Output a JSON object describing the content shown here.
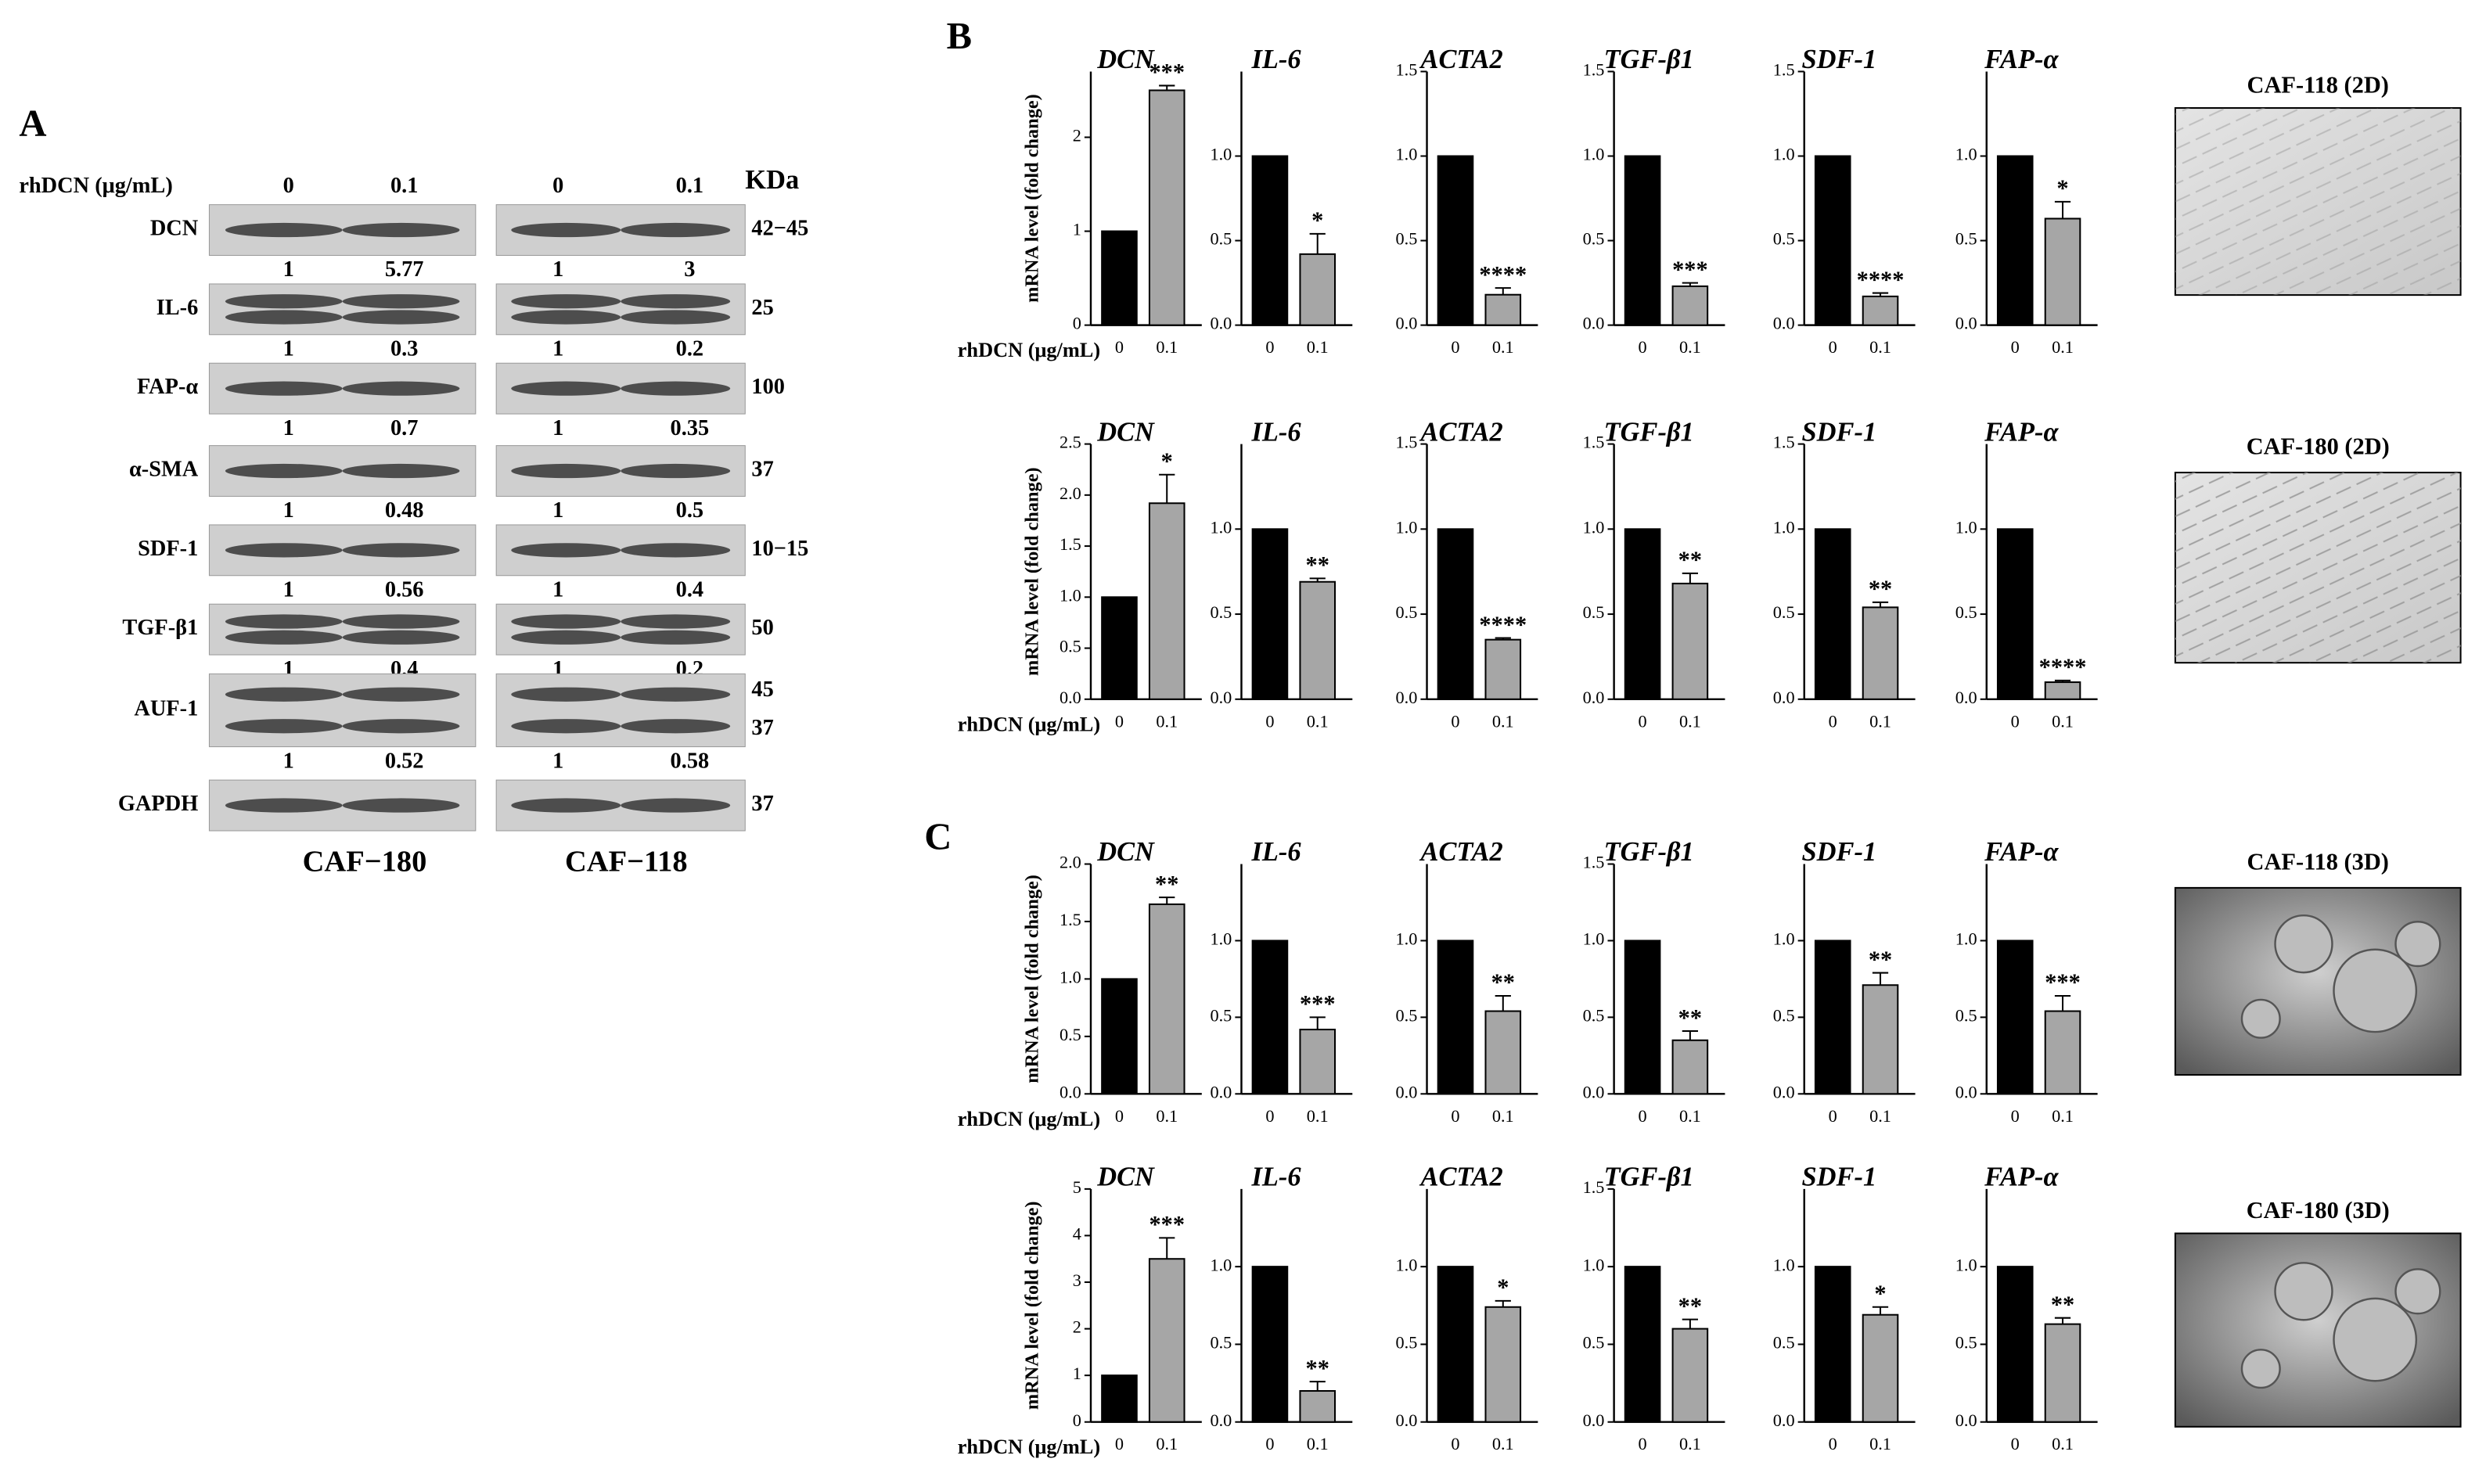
{
  "panel_a": {
    "label": "A",
    "treatment_label": "rhDCN (μg/mL)",
    "doses": [
      "0",
      "0.1",
      "0",
      "0.1"
    ],
    "kda_header": "KDa",
    "rows": [
      {
        "protein": "DCN",
        "kda": [
          "42−45"
        ],
        "ratios": [
          1,
          5.77,
          1,
          3
        ]
      },
      {
        "protein": "IL-6",
        "kda": [
          25
        ],
        "ratios": [
          1,
          0.3,
          1,
          0.2
        ]
      },
      {
        "protein": "FAP-α",
        "kda": [
          100
        ],
        "ratios": [
          1,
          0.7,
          1,
          0.35
        ]
      },
      {
        "protein": "α-SMA",
        "kda": [
          37
        ],
        "ratios": [
          1,
          0.48,
          1,
          0.5
        ]
      },
      {
        "protein": "SDF-1",
        "kda": [
          "10−15"
        ],
        "ratios": [
          1,
          0.56,
          1,
          0.4
        ]
      },
      {
        "protein": "TGF-β1",
        "kda": [
          50
        ],
        "ratios": [
          1,
          0.4,
          1,
          0.2
        ]
      },
      {
        "protein": "AUF-1",
        "kda": [
          45,
          37
        ],
        "ratios": [
          1,
          0.52,
          1,
          0.58
        ]
      },
      {
        "protein": "GAPDH",
        "kda": [
          37
        ]
      }
    ],
    "groups": [
      "CAF−180",
      "CAF−118"
    ]
  },
  "panel_b_label": "B",
  "panel_c_label": "C",
  "images": [
    {
      "caption": "CAF-118 (2D)"
    },
    {
      "caption": "CAF-180 (2D)"
    },
    {
      "caption": "CAF-118 (3D)"
    },
    {
      "caption": "CAF-180 (3D)"
    }
  ],
  "chart_data": [
    {
      "type": "bar",
      "title": "DCN",
      "ylabel": "mRNA level (fold change)",
      "xlabel": "rhDCN (μg/mL)",
      "categories": [
        "0",
        "0.1"
      ],
      "values": [
        1,
        2.5
      ],
      "errors": [
        null,
        0.05
      ],
      "significance": "***",
      "ylim": [
        0,
        2.7
      ],
      "yticks": [
        0,
        1,
        2
      ],
      "colors": [
        "#000000",
        "#a6a6a6"
      ]
    },
    {
      "type": "bar",
      "title": "IL-6",
      "categories": [
        "0",
        "0.1"
      ],
      "values": [
        1,
        0.42
      ],
      "errors": [
        null,
        0.12
      ],
      "significance": "*",
      "ylim": [
        0,
        1.5
      ],
      "yticks": [
        {
          "value": 0,
          "label": "0.0"
        },
        {
          "value": 0.5,
          "label": "0.5"
        },
        {
          "value": 1,
          "label": "1.0"
        }
      ],
      "colors": [
        "#000000",
        "#a6a6a6"
      ]
    },
    {
      "type": "bar",
      "title": "ACTA2",
      "categories": [
        "0",
        "0.1"
      ],
      "values": [
        1,
        0.18
      ],
      "errors": [
        null,
        0.04
      ],
      "significance": "****",
      "ylim": [
        0,
        1.5
      ],
      "yticks": [
        {
          "value": 0,
          "label": "0.0"
        },
        {
          "value": 0.5,
          "label": "0.5"
        },
        {
          "value": 1,
          "label": "1.0"
        },
        {
          "value": 1.5,
          "label": "1.5"
        }
      ],
      "colors": [
        "#000000",
        "#a6a6a6"
      ]
    },
    {
      "type": "bar",
      "title": "TGF-β1",
      "categories": [
        "0",
        "0.1"
      ],
      "values": [
        1,
        0.23
      ],
      "errors": [
        null,
        0.02
      ],
      "significance": "***",
      "ylim": [
        0,
        1.5
      ],
      "yticks": [
        {
          "value": 0,
          "label": "0.0"
        },
        {
          "value": 0.5,
          "label": "0.5"
        },
        {
          "value": 1,
          "label": "1.0"
        },
        {
          "value": 1.5,
          "label": "1.5"
        }
      ],
      "colors": [
        "#000000",
        "#a6a6a6"
      ]
    },
    {
      "type": "bar",
      "title": "SDF-1",
      "categories": [
        "0",
        "0.1"
      ],
      "values": [
        1,
        0.17
      ],
      "errors": [
        null,
        0.02
      ],
      "significance": "****",
      "ylim": [
        0,
        1.5
      ],
      "yticks": [
        {
          "value": 0,
          "label": "0.0"
        },
        {
          "value": 0.5,
          "label": "0.5"
        },
        {
          "value": 1,
          "label": "1.0"
        },
        {
          "value": 1.5,
          "label": "1.5"
        }
      ],
      "colors": [
        "#000000",
        "#a6a6a6"
      ]
    },
    {
      "type": "bar",
      "title": "FAP-α",
      "categories": [
        "0",
        "0.1"
      ],
      "values": [
        1,
        0.63
      ],
      "errors": [
        null,
        0.1
      ],
      "significance": "*",
      "ylim": [
        0,
        1.5
      ],
      "yticks": [
        {
          "value": 0,
          "label": "0.0"
        },
        {
          "value": 0.5,
          "label": "0.5"
        },
        {
          "value": 1,
          "label": "1.0"
        }
      ],
      "colors": [
        "#000000",
        "#a6a6a6"
      ]
    },
    {
      "type": "bar",
      "title": "DCN",
      "ylabel": "mRNA level (fold change)",
      "xlabel": "rhDCN (μg/mL)",
      "categories": [
        "0",
        "0.1"
      ],
      "values": [
        1,
        1.92
      ],
      "errors": [
        null,
        0.28
      ],
      "significance": "*",
      "ylim": [
        0,
        2.5
      ],
      "yticks": [
        {
          "value": 0,
          "label": "0.0"
        },
        {
          "value": 0.5,
          "label": "0.5"
        },
        {
          "value": 1,
          "label": "1.0"
        },
        {
          "value": 1.5,
          "label": "1.5"
        },
        {
          "value": 2,
          "label": "2.0"
        },
        {
          "value": 2.5,
          "label": "2.5"
        }
      ],
      "colors": [
        "#000000",
        "#a6a6a6"
      ]
    },
    {
      "type": "bar",
      "title": "IL-6",
      "categories": [
        "0",
        "0.1"
      ],
      "values": [
        1,
        0.69
      ],
      "errors": [
        null,
        0.02
      ],
      "significance": "**",
      "ylim": [
        0,
        1.5
      ],
      "yticks": [
        {
          "value": 0,
          "label": "0.0"
        },
        {
          "value": 0.5,
          "label": "0.5"
        },
        {
          "value": 1,
          "label": "1.0"
        }
      ],
      "colors": [
        "#000000",
        "#a6a6a6"
      ]
    },
    {
      "type": "bar",
      "title": "ACTA2",
      "categories": [
        "0",
        "0.1"
      ],
      "values": [
        1,
        0.35
      ],
      "errors": [
        null,
        0.01
      ],
      "significance": "****",
      "ylim": [
        0,
        1.5
      ],
      "yticks": [
        {
          "value": 0,
          "label": "0.0"
        },
        {
          "value": 0.5,
          "label": "0.5"
        },
        {
          "value": 1,
          "label": "1.0"
        },
        {
          "value": 1.5,
          "label": "1.5"
        }
      ],
      "colors": [
        "#000000",
        "#a6a6a6"
      ]
    },
    {
      "type": "bar",
      "title": "TGF-β1",
      "categories": [
        "0",
        "0.1"
      ],
      "values": [
        1,
        0.68
      ],
      "errors": [
        null,
        0.06
      ],
      "significance": "**",
      "ylim": [
        0,
        1.5
      ],
      "yticks": [
        {
          "value": 0,
          "label": "0.0"
        },
        {
          "value": 0.5,
          "label": "0.5"
        },
        {
          "value": 1,
          "label": "1.0"
        },
        {
          "value": 1.5,
          "label": "1.5"
        }
      ],
      "colors": [
        "#000000",
        "#a6a6a6"
      ]
    },
    {
      "type": "bar",
      "title": "SDF-1",
      "categories": [
        "0",
        "0.1"
      ],
      "values": [
        1,
        0.54
      ],
      "errors": [
        null,
        0.03
      ],
      "significance": "**",
      "ylim": [
        0,
        1.5
      ],
      "yticks": [
        {
          "value": 0,
          "label": "0.0"
        },
        {
          "value": 0.5,
          "label": "0.5"
        },
        {
          "value": 1,
          "label": "1.0"
        },
        {
          "value": 1.5,
          "label": "1.5"
        }
      ],
      "colors": [
        "#000000",
        "#a6a6a6"
      ]
    },
    {
      "type": "bar",
      "title": "FAP-α",
      "categories": [
        "0",
        "0.1"
      ],
      "values": [
        1,
        0.1
      ],
      "errors": [
        null,
        0.01
      ],
      "significance": "****",
      "ylim": [
        0,
        1.5
      ],
      "yticks": [
        {
          "value": 0,
          "label": "0.0"
        },
        {
          "value": 0.5,
          "label": "0.5"
        },
        {
          "value": 1,
          "label": "1.0"
        }
      ],
      "colors": [
        "#000000",
        "#a6a6a6"
      ]
    },
    {
      "type": "bar",
      "title": "DCN",
      "ylabel": "mRNA level (fold change)",
      "xlabel": "rhDCN (μg/mL)",
      "categories": [
        "0",
        "0.1"
      ],
      "values": [
        1,
        1.65
      ],
      "errors": [
        null,
        0.06
      ],
      "significance": "**",
      "ylim": [
        0,
        2
      ],
      "yticks": [
        {
          "value": 0,
          "label": "0.0"
        },
        {
          "value": 0.5,
          "label": "0.5"
        },
        {
          "value": 1,
          "label": "1.0"
        },
        {
          "value": 1.5,
          "label": "1.5"
        },
        {
          "value": 2,
          "label": "2.0"
        }
      ],
      "colors": [
        "#000000",
        "#a6a6a6"
      ]
    },
    {
      "type": "bar",
      "title": "IL-6",
      "categories": [
        "0",
        "0.1"
      ],
      "values": [
        1,
        0.42
      ],
      "errors": [
        null,
        0.08
      ],
      "significance": "***",
      "ylim": [
        0,
        1.5
      ],
      "yticks": [
        {
          "value": 0,
          "label": "0.0"
        },
        {
          "value": 0.5,
          "label": "0.5"
        },
        {
          "value": 1,
          "label": "1.0"
        }
      ],
      "colors": [
        "#000000",
        "#a6a6a6"
      ]
    },
    {
      "type": "bar",
      "title": "ACTA2",
      "categories": [
        "0",
        "0.1"
      ],
      "values": [
        1,
        0.54
      ],
      "errors": [
        null,
        0.1
      ],
      "significance": "**",
      "ylim": [
        0,
        1.5
      ],
      "yticks": [
        {
          "value": 0,
          "label": "0.0"
        },
        {
          "value": 0.5,
          "label": "0.5"
        },
        {
          "value": 1,
          "label": "1.0"
        }
      ],
      "colors": [
        "#000000",
        "#a6a6a6"
      ]
    },
    {
      "type": "bar",
      "title": "TGF-β1",
      "categories": [
        "0",
        "0.1"
      ],
      "values": [
        1,
        0.35
      ],
      "errors": [
        null,
        0.06
      ],
      "significance": "**",
      "ylim": [
        0,
        1.5
      ],
      "yticks": [
        {
          "value": 0,
          "label": "0.0"
        },
        {
          "value": 0.5,
          "label": "0.5"
        },
        {
          "value": 1,
          "label": "1.0"
        },
        {
          "value": 1.5,
          "label": "1.5"
        }
      ],
      "colors": [
        "#000000",
        "#a6a6a6"
      ]
    },
    {
      "type": "bar",
      "title": "SDF-1",
      "categories": [
        "0",
        "0.1"
      ],
      "values": [
        1,
        0.71
      ],
      "errors": [
        null,
        0.08
      ],
      "significance": "**",
      "ylim": [
        0,
        1.5
      ],
      "yticks": [
        {
          "value": 0,
          "label": "0.0"
        },
        {
          "value": 0.5,
          "label": "0.5"
        },
        {
          "value": 1,
          "label": "1.0"
        }
      ],
      "colors": [
        "#000000",
        "#a6a6a6"
      ]
    },
    {
      "type": "bar",
      "title": "FAP-α",
      "categories": [
        "0",
        "0.1"
      ],
      "values": [
        1,
        0.54
      ],
      "errors": [
        null,
        0.1
      ],
      "significance": "***",
      "ylim": [
        0,
        1.5
      ],
      "yticks": [
        {
          "value": 0,
          "label": "0.0"
        },
        {
          "value": 0.5,
          "label": "0.5"
        },
        {
          "value": 1,
          "label": "1.0"
        }
      ],
      "colors": [
        "#000000",
        "#a6a6a6"
      ]
    },
    {
      "type": "bar",
      "title": "DCN",
      "ylabel": "mRNA level (fold change)",
      "xlabel": "rhDCN (μg/mL)",
      "categories": [
        "0",
        "0.1"
      ],
      "values": [
        1,
        3.5
      ],
      "errors": [
        null,
        0.45
      ],
      "significance": "***",
      "ylim": [
        0,
        5
      ],
      "yticks": [
        0,
        1,
        2,
        3,
        4,
        5
      ],
      "colors": [
        "#000000",
        "#a6a6a6"
      ]
    },
    {
      "type": "bar",
      "title": "IL-6",
      "categories": [
        "0",
        "0.1"
      ],
      "values": [
        1,
        0.2
      ],
      "errors": [
        null,
        0.06
      ],
      "significance": "**",
      "ylim": [
        0,
        1.5
      ],
      "yticks": [
        {
          "value": 0,
          "label": "0.0"
        },
        {
          "value": 0.5,
          "label": "0.5"
        },
        {
          "value": 1,
          "label": "1.0"
        }
      ],
      "colors": [
        "#000000",
        "#a6a6a6"
      ]
    },
    {
      "type": "bar",
      "title": "ACTA2",
      "categories": [
        "0",
        "0.1"
      ],
      "values": [
        1,
        0.74
      ],
      "errors": [
        null,
        0.04
      ],
      "significance": "*",
      "ylim": [
        0,
        1.5
      ],
      "yticks": [
        {
          "value": 0,
          "label": "0.0"
        },
        {
          "value": 0.5,
          "label": "0.5"
        },
        {
          "value": 1,
          "label": "1.0"
        }
      ],
      "colors": [
        "#000000",
        "#a6a6a6"
      ]
    },
    {
      "type": "bar",
      "title": "TGF-β1",
      "categories": [
        "0",
        "0.1"
      ],
      "values": [
        1,
        0.6
      ],
      "errors": [
        null,
        0.06
      ],
      "significance": "**",
      "ylim": [
        0,
        1.5
      ],
      "yticks": [
        {
          "value": 0,
          "label": "0.0"
        },
        {
          "value": 0.5,
          "label": "0.5"
        },
        {
          "value": 1,
          "label": "1.0"
        },
        {
          "value": 1.5,
          "label": "1.5"
        }
      ],
      "colors": [
        "#000000",
        "#a6a6a6"
      ]
    },
    {
      "type": "bar",
      "title": "SDF-1",
      "categories": [
        "0",
        "0.1"
      ],
      "values": [
        1,
        0.69
      ],
      "errors": [
        null,
        0.05
      ],
      "significance": "*",
      "ylim": [
        0,
        1.5
      ],
      "yticks": [
        {
          "value": 0,
          "label": "0.0"
        },
        {
          "value": 0.5,
          "label": "0.5"
        },
        {
          "value": 1,
          "label": "1.0"
        }
      ],
      "colors": [
        "#000000",
        "#a6a6a6"
      ]
    },
    {
      "type": "bar",
      "title": "FAP-α",
      "categories": [
        "0",
        "0.1"
      ],
      "values": [
        1,
        0.63
      ],
      "errors": [
        null,
        0.04
      ],
      "significance": "**",
      "ylim": [
        0,
        1.5
      ],
      "yticks": [
        {
          "value": 0,
          "label": "0.0"
        },
        {
          "value": 0.5,
          "label": "0.5"
        },
        {
          "value": 1,
          "label": "1.0"
        }
      ],
      "colors": [
        "#000000",
        "#a6a6a6"
      ]
    }
  ]
}
